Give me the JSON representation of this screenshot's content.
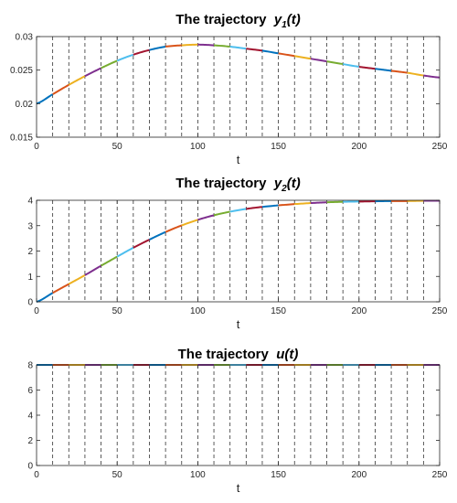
{
  "colors": [
    "#0072BD",
    "#D95319",
    "#EDB120",
    "#7E2F8E",
    "#77AC30",
    "#4DBEEE",
    "#A2142F"
  ],
  "chart_data": [
    {
      "type": "line",
      "title_prefix": "The trajectory",
      "title_var": "y",
      "title_sub": "1",
      "title_suffix": "(t)",
      "xlabel": "t",
      "ylabel": "",
      "xlim": [
        0,
        250
      ],
      "ylim": [
        0.015,
        0.03
      ],
      "xticks": [
        0,
        50,
        100,
        150,
        200,
        250
      ],
      "xtick_labels": [
        "0",
        "50",
        "100",
        "150",
        "200",
        "250"
      ],
      "yticks": [
        0.015,
        0.02,
        0.025,
        0.03
      ],
      "ytick_labels": [
        "0.015",
        "0.02",
        "0.025",
        "0.03"
      ],
      "grid": false,
      "segment_boundaries": [
        10,
        20,
        30,
        40,
        50,
        60,
        70,
        80,
        90,
        100,
        110,
        120,
        130,
        140,
        150,
        160,
        170,
        180,
        190,
        200,
        210,
        220,
        230,
        240
      ],
      "x": [
        0,
        10,
        20,
        30,
        40,
        50,
        60,
        70,
        80,
        90,
        100,
        110,
        120,
        130,
        140,
        150,
        160,
        170,
        180,
        190,
        200,
        210,
        220,
        230,
        240,
        250
      ],
      "y": [
        0.02,
        0.0214,
        0.0228,
        0.0241,
        0.0253,
        0.0264,
        0.0273,
        0.028,
        0.0285,
        0.0287,
        0.0288,
        0.0287,
        0.0285,
        0.0282,
        0.0279,
        0.0275,
        0.0271,
        0.0267,
        0.0263,
        0.0259,
        0.0255,
        0.0252,
        0.0249,
        0.0246,
        0.0242,
        0.0239
      ]
    },
    {
      "type": "line",
      "title_prefix": "The trajectory",
      "title_var": "y",
      "title_sub": "2",
      "title_suffix": "(t)",
      "xlabel": "t",
      "ylabel": "",
      "xlim": [
        0,
        250
      ],
      "ylim": [
        0,
        4
      ],
      "xticks": [
        0,
        50,
        100,
        150,
        200,
        250
      ],
      "xtick_labels": [
        "0",
        "50",
        "100",
        "150",
        "200",
        "250"
      ],
      "yticks": [
        0,
        1,
        2,
        3,
        4
      ],
      "ytick_labels": [
        "0",
        "1",
        "2",
        "3",
        "4"
      ],
      "grid": false,
      "segment_boundaries": [
        10,
        20,
        30,
        40,
        50,
        60,
        70,
        80,
        90,
        100,
        110,
        120,
        130,
        140,
        150,
        160,
        170,
        180,
        190,
        200,
        210,
        220,
        230,
        240
      ],
      "x": [
        0,
        10,
        20,
        30,
        40,
        50,
        60,
        70,
        80,
        90,
        100,
        110,
        120,
        130,
        140,
        150,
        160,
        170,
        180,
        190,
        200,
        210,
        220,
        230,
        240,
        250
      ],
      "y": [
        0.0,
        0.35,
        0.7,
        1.05,
        1.42,
        1.78,
        2.13,
        2.45,
        2.75,
        3.01,
        3.23,
        3.41,
        3.55,
        3.66,
        3.74,
        3.8,
        3.85,
        3.89,
        3.92,
        3.94,
        3.95,
        3.96,
        3.97,
        3.97,
        3.98,
        3.98
      ]
    },
    {
      "type": "line",
      "title_prefix": "The trajectory",
      "title_var": "u",
      "title_sub": "",
      "title_suffix": "(t)",
      "xlabel": "t",
      "ylabel": "",
      "xlim": [
        0,
        250
      ],
      "ylim": [
        0,
        8
      ],
      "xticks": [
        0,
        50,
        100,
        150,
        200,
        250
      ],
      "xtick_labels": [
        "0",
        "50",
        "100",
        "150",
        "200",
        "250"
      ],
      "yticks": [
        0,
        2,
        4,
        6,
        8
      ],
      "ytick_labels": [
        "0",
        "2",
        "4",
        "6",
        "8"
      ],
      "grid": false,
      "segment_boundaries": [
        10,
        20,
        30,
        40,
        50,
        60,
        70,
        80,
        90,
        100,
        110,
        120,
        130,
        140,
        150,
        160,
        170,
        180,
        190,
        200,
        210,
        220,
        230,
        240
      ],
      "x": [
        0,
        10,
        20,
        30,
        40,
        50,
        60,
        70,
        80,
        90,
        100,
        110,
        120,
        130,
        140,
        150,
        160,
        170,
        180,
        190,
        200,
        210,
        220,
        230,
        240,
        250
      ],
      "y": [
        8,
        8,
        8,
        8,
        8,
        8,
        8,
        8,
        8,
        8,
        8,
        8,
        8,
        8,
        8,
        8,
        8,
        8,
        8,
        8,
        8,
        8,
        8,
        8,
        8,
        8
      ]
    }
  ]
}
